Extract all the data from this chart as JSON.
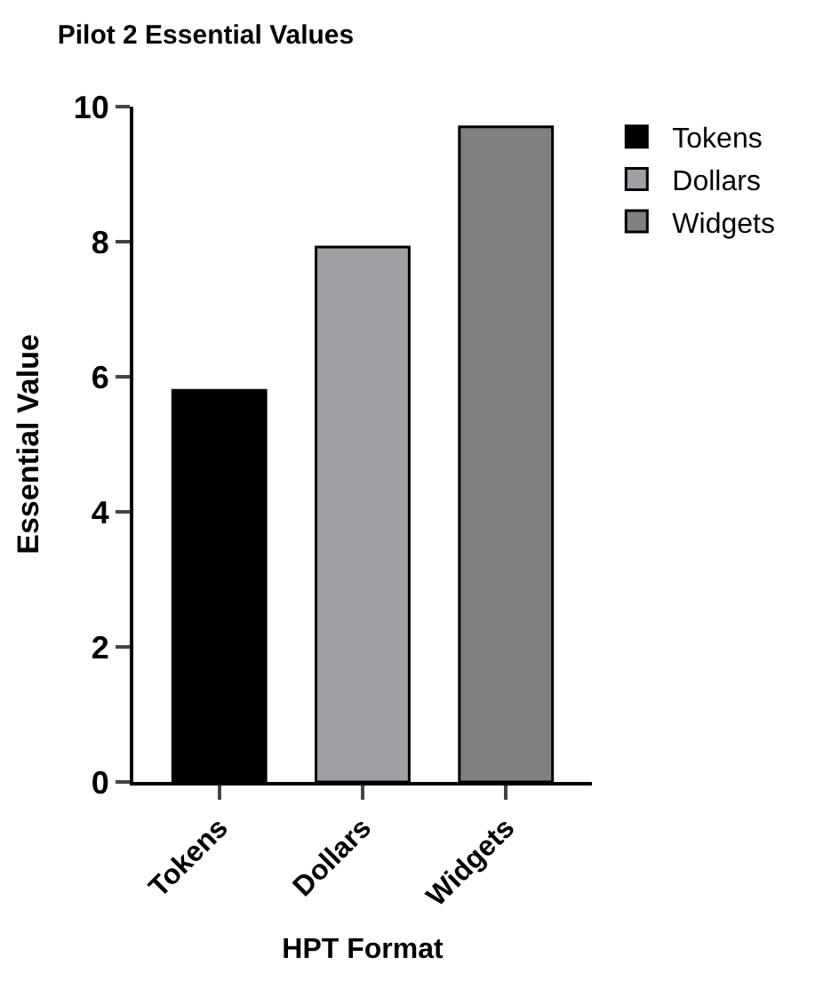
{
  "chart_data": {
    "type": "bar",
    "title": "Pilot 2 Essential Values",
    "xlabel": "HPT Format",
    "ylabel": "Essential Value",
    "categories": [
      "Tokens",
      "Dollars",
      "Widgets"
    ],
    "series": [
      {
        "name": "Tokens",
        "color": "#000000",
        "values": [
          5.8,
          null,
          null
        ]
      },
      {
        "name": "Dollars",
        "color": "#a0a0a4",
        "values": [
          null,
          7.92,
          null
        ]
      },
      {
        "name": "Widgets",
        "color": "#808080",
        "values": [
          null,
          null,
          9.7
        ]
      }
    ],
    "ylim": [
      0,
      10
    ],
    "yticks": [
      0,
      2,
      4,
      6,
      8,
      10
    ],
    "legend": "top right"
  }
}
